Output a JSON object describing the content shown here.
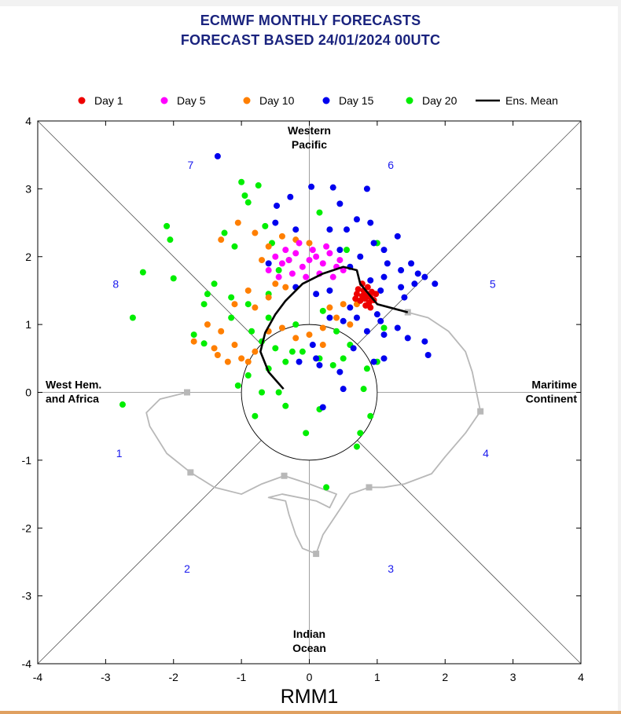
{
  "header": {
    "title_line1": "ECMWF MONTHLY FORECASTS",
    "title_line2": "FORECAST  BASED 24/01/2024 00UTC"
  },
  "colors": {
    "day1": "#ee0000",
    "day5": "#ff00ff",
    "day10": "#ff7f00",
    "day15": "#0000ee",
    "day20": "#00ee00",
    "mean": "#000000",
    "observed": "#b8b8b8",
    "phase_numbers": "#1a1aee",
    "title": "#1a237e"
  },
  "chart_data": {
    "type": "scatter",
    "title": "ECMWF MONTHLY FORECASTS",
    "subtitle": "FORECAST  BASED 24/01/2024 00UTC",
    "xlabel": "RMM1",
    "xlim": [
      -4,
      4
    ],
    "ylim": [
      -4,
      4
    ],
    "x_ticks": [
      -4,
      -3,
      -2,
      -1,
      0,
      1,
      2,
      3,
      4
    ],
    "y_ticks": [
      -4,
      -3,
      -2,
      -1,
      0,
      1,
      2,
      3,
      4
    ],
    "legend_position": "top",
    "legend": [
      "Day 1",
      "Day 5",
      "Day 10",
      "Day 15",
      "Day 20",
      "Ens. Mean"
    ],
    "region_labels": [
      {
        "text": [
          "Western",
          "Pacific"
        ],
        "pos": "top"
      },
      {
        "text": [
          "Indian",
          "Ocean"
        ],
        "pos": "bottom"
      },
      {
        "text": [
          "West Hem.",
          "and Africa"
        ],
        "pos": "left"
      },
      {
        "text": [
          "Maritime",
          "Continent"
        ],
        "pos": "right"
      }
    ],
    "phases": [
      {
        "label": "1",
        "x": -2.8,
        "y": -0.9
      },
      {
        "label": "2",
        "x": -1.8,
        "y": -2.6
      },
      {
        "label": "3",
        "x": 1.2,
        "y": -2.6
      },
      {
        "label": "4",
        "x": 2.6,
        "y": -0.9
      },
      {
        "label": "5",
        "x": 2.7,
        "y": 1.6
      },
      {
        "label": "6",
        "x": 1.2,
        "y": 3.35
      },
      {
        "label": "7",
        "x": -1.75,
        "y": 3.35
      },
      {
        "label": "8",
        "x": -2.85,
        "y": 1.6
      }
    ],
    "observed_markers": [
      {
        "x": -1.8,
        "y": 0.0
      },
      {
        "x": -1.75,
        "y": -1.18
      },
      {
        "x": -0.37,
        "y": -1.23
      },
      {
        "x": 0.1,
        "y": -2.38
      },
      {
        "x": 0.88,
        "y": -1.4
      },
      {
        "x": 2.52,
        "y": -0.28
      },
      {
        "x": 1.45,
        "y": 1.18
      }
    ],
    "series": [
      {
        "name": "Observed",
        "legend": false,
        "points": [
          [
            1.45,
            1.18
          ],
          [
            1.75,
            1.1
          ],
          [
            2.05,
            0.9
          ],
          [
            2.3,
            0.6
          ],
          [
            2.4,
            0.3
          ],
          [
            2.52,
            -0.28
          ],
          [
            2.3,
            -0.6
          ],
          [
            2.0,
            -0.95
          ],
          [
            1.8,
            -1.2
          ],
          [
            1.4,
            -1.35
          ],
          [
            1.1,
            -1.4
          ],
          [
            0.88,
            -1.4
          ],
          [
            0.6,
            -1.5
          ],
          [
            0.4,
            -1.8
          ],
          [
            0.2,
            -2.1
          ],
          [
            0.1,
            -2.38
          ],
          [
            -0.1,
            -2.3
          ],
          [
            -0.2,
            -2.1
          ],
          [
            -0.3,
            -1.8
          ],
          [
            -0.35,
            -1.6
          ],
          [
            -0.6,
            -1.55
          ],
          [
            -0.4,
            -1.5
          ],
          [
            0.1,
            -1.6
          ],
          [
            0.3,
            -1.7
          ],
          [
            0.4,
            -1.5
          ],
          [
            0.0,
            -1.35
          ],
          [
            -0.37,
            -1.23
          ],
          [
            -0.7,
            -1.35
          ],
          [
            -1.0,
            -1.5
          ],
          [
            -1.4,
            -1.4
          ],
          [
            -1.75,
            -1.18
          ],
          [
            -2.1,
            -0.9
          ],
          [
            -2.35,
            -0.5
          ],
          [
            -2.4,
            -0.3
          ],
          [
            -2.2,
            -0.1
          ],
          [
            -1.8,
            0.0
          ]
        ]
      },
      {
        "name": "Ens. Mean",
        "points": [
          [
            -0.38,
            0.05
          ],
          [
            -0.6,
            0.3
          ],
          [
            -0.72,
            0.6
          ],
          [
            -0.65,
            0.88
          ],
          [
            -0.5,
            1.15
          ],
          [
            -0.35,
            1.35
          ],
          [
            -0.1,
            1.6
          ],
          [
            0.2,
            1.75
          ],
          [
            0.5,
            1.85
          ],
          [
            0.7,
            1.8
          ],
          [
            0.75,
            1.6
          ],
          [
            1.0,
            1.3
          ],
          [
            1.45,
            1.18
          ]
        ]
      },
      {
        "name": "Day 1",
        "points": [
          [
            0.78,
            1.42
          ],
          [
            0.82,
            1.38
          ],
          [
            0.85,
            1.45
          ],
          [
            0.9,
            1.4
          ],
          [
            0.8,
            1.5
          ],
          [
            0.75,
            1.35
          ],
          [
            0.88,
            1.32
          ],
          [
            0.92,
            1.48
          ],
          [
            0.7,
            1.45
          ],
          [
            0.86,
            1.55
          ],
          [
            0.95,
            1.36
          ],
          [
            0.72,
            1.52
          ],
          [
            0.83,
            1.28
          ],
          [
            0.78,
            1.6
          ],
          [
            0.68,
            1.38
          ],
          [
            0.9,
            1.25
          ],
          [
            0.98,
            1.45
          ]
        ]
      },
      {
        "name": "Day 5",
        "points": [
          [
            -0.5,
            2.0
          ],
          [
            -0.4,
            1.9
          ],
          [
            -0.3,
            1.95
          ],
          [
            -0.2,
            2.05
          ],
          [
            -0.1,
            1.85
          ],
          [
            0.0,
            1.95
          ],
          [
            0.1,
            2.0
          ],
          [
            0.2,
            1.9
          ],
          [
            0.3,
            2.05
          ],
          [
            0.4,
            1.85
          ],
          [
            -0.6,
            1.8
          ],
          [
            -0.45,
            1.7
          ],
          [
            -0.25,
            1.75
          ],
          [
            -0.05,
            1.7
          ],
          [
            0.15,
            1.75
          ],
          [
            0.35,
            1.7
          ],
          [
            0.5,
            1.8
          ],
          [
            -0.35,
            2.1
          ],
          [
            0.05,
            2.1
          ],
          [
            0.25,
            2.15
          ],
          [
            -0.15,
            2.2
          ],
          [
            0.45,
            1.95
          ]
        ]
      },
      {
        "name": "Day 10",
        "points": [
          [
            -1.3,
            2.25
          ],
          [
            -1.05,
            2.5
          ],
          [
            -0.8,
            2.35
          ],
          [
            -0.6,
            2.15
          ],
          [
            -0.4,
            2.3
          ],
          [
            -0.2,
            2.25
          ],
          [
            0.0,
            2.2
          ],
          [
            -0.7,
            1.95
          ],
          [
            -0.5,
            1.6
          ],
          [
            -0.9,
            1.5
          ],
          [
            -1.1,
            1.3
          ],
          [
            -0.8,
            1.25
          ],
          [
            -0.6,
            1.4
          ],
          [
            -1.3,
            0.9
          ],
          [
            -1.1,
            0.7
          ],
          [
            -1.0,
            0.5
          ],
          [
            -0.8,
            0.6
          ],
          [
            -0.6,
            0.9
          ],
          [
            -0.4,
            0.95
          ],
          [
            -0.2,
            0.8
          ],
          [
            0.0,
            0.85
          ],
          [
            0.2,
            0.95
          ],
          [
            0.4,
            1.1
          ],
          [
            0.6,
            1.0
          ],
          [
            0.7,
            1.3
          ],
          [
            0.5,
            1.3
          ],
          [
            0.3,
            1.25
          ],
          [
            -1.5,
            1.0
          ],
          [
            -1.7,
            0.75
          ],
          [
            -1.4,
            0.65
          ],
          [
            -0.9,
            0.45
          ],
          [
            0.2,
            0.7
          ],
          [
            -0.35,
            1.55
          ],
          [
            -1.2,
            0.45
          ],
          [
            -1.35,
            0.55
          ]
        ]
      },
      {
        "name": "Day 15",
        "points": [
          [
            -1.35,
            3.48
          ],
          [
            0.03,
            3.03
          ],
          [
            -0.28,
            2.88
          ],
          [
            0.35,
            3.02
          ],
          [
            0.85,
            3.0
          ],
          [
            -0.48,
            2.75
          ],
          [
            0.45,
            2.78
          ],
          [
            -0.5,
            2.5
          ],
          [
            0.7,
            2.55
          ],
          [
            0.9,
            2.5
          ],
          [
            -0.2,
            2.4
          ],
          [
            0.3,
            2.4
          ],
          [
            0.55,
            2.4
          ],
          [
            0.95,
            2.2
          ],
          [
            1.1,
            2.1
          ],
          [
            1.3,
            2.3
          ],
          [
            1.35,
            1.8
          ],
          [
            1.5,
            1.9
          ],
          [
            1.6,
            1.75
          ],
          [
            1.35,
            1.55
          ],
          [
            1.55,
            1.6
          ],
          [
            1.7,
            1.7
          ],
          [
            1.85,
            1.6
          ],
          [
            1.4,
            1.4
          ],
          [
            1.05,
            1.5
          ],
          [
            1.1,
            1.7
          ],
          [
            0.9,
            1.65
          ],
          [
            0.75,
            2.0
          ],
          [
            0.6,
            1.85
          ],
          [
            1.05,
            1.05
          ],
          [
            1.1,
            0.85
          ],
          [
            1.3,
            0.95
          ],
          [
            1.45,
            0.8
          ],
          [
            1.7,
            0.75
          ],
          [
            1.75,
            0.55
          ],
          [
            1.1,
            0.5
          ],
          [
            0.95,
            0.45
          ],
          [
            0.6,
            1.25
          ],
          [
            0.7,
            1.1
          ],
          [
            0.5,
            1.05
          ],
          [
            0.3,
            1.1
          ],
          [
            0.1,
            0.5
          ],
          [
            0.05,
            0.7
          ],
          [
            0.45,
            0.3
          ],
          [
            0.5,
            0.05
          ],
          [
            0.2,
            -0.22
          ],
          [
            1.0,
            1.15
          ],
          [
            0.85,
            0.9
          ],
          [
            0.65,
            0.65
          ],
          [
            -0.2,
            1.55
          ],
          [
            0.1,
            1.45
          ],
          [
            0.3,
            1.5
          ],
          [
            0.45,
            2.1
          ],
          [
            1.15,
            1.9
          ],
          [
            -0.6,
            1.9
          ],
          [
            -0.15,
            0.45
          ],
          [
            0.15,
            0.4
          ]
        ]
      },
      {
        "name": "Day 20",
        "points": [
          [
            -1.0,
            3.1
          ],
          [
            -0.75,
            3.05
          ],
          [
            -0.95,
            2.9
          ],
          [
            -0.9,
            2.8
          ],
          [
            -1.25,
            2.35
          ],
          [
            -1.1,
            2.15
          ],
          [
            -2.1,
            2.45
          ],
          [
            -2.05,
            2.25
          ],
          [
            -2.45,
            1.77
          ],
          [
            -2.0,
            1.68
          ],
          [
            -2.6,
            1.1
          ],
          [
            -1.4,
            1.6
          ],
          [
            -1.5,
            1.45
          ],
          [
            -1.55,
            1.3
          ],
          [
            -1.15,
            1.4
          ],
          [
            -0.9,
            1.3
          ],
          [
            -0.6,
            1.1
          ],
          [
            -1.15,
            1.1
          ],
          [
            -1.7,
            0.85
          ],
          [
            -1.55,
            0.72
          ],
          [
            -0.85,
            0.9
          ],
          [
            -0.7,
            0.75
          ],
          [
            -0.5,
            0.65
          ],
          [
            -0.25,
            0.6
          ],
          [
            -0.1,
            0.6
          ],
          [
            0.15,
            0.5
          ],
          [
            0.35,
            0.4
          ],
          [
            0.5,
            0.5
          ],
          [
            -0.6,
            0.35
          ],
          [
            -0.35,
            0.45
          ],
          [
            -1.05,
            0.1
          ],
          [
            -0.9,
            0.25
          ],
          [
            -0.7,
            0.0
          ],
          [
            -0.45,
            0.0
          ],
          [
            -0.35,
            -0.2
          ],
          [
            0.15,
            -0.25
          ],
          [
            -0.8,
            -0.35
          ],
          [
            -0.05,
            -0.6
          ],
          [
            0.75,
            -0.6
          ],
          [
            0.9,
            -0.35
          ],
          [
            0.85,
            0.35
          ],
          [
            1.0,
            0.45
          ],
          [
            0.8,
            0.05
          ],
          [
            0.7,
            -0.8
          ],
          [
            0.25,
            -1.4
          ],
          [
            -2.75,
            -0.18
          ],
          [
            0.15,
            2.65
          ],
          [
            0.55,
            2.1
          ],
          [
            1.0,
            2.2
          ],
          [
            -0.65,
            2.45
          ],
          [
            -0.55,
            2.2
          ],
          [
            -0.3,
            1.95
          ],
          [
            -0.45,
            1.8
          ],
          [
            0.6,
            0.7
          ],
          [
            0.4,
            0.9
          ],
          [
            -0.2,
            1.0
          ],
          [
            0.2,
            1.2
          ],
          [
            -0.6,
            1.45
          ],
          [
            1.1,
            0.95
          ]
        ]
      }
    ]
  }
}
